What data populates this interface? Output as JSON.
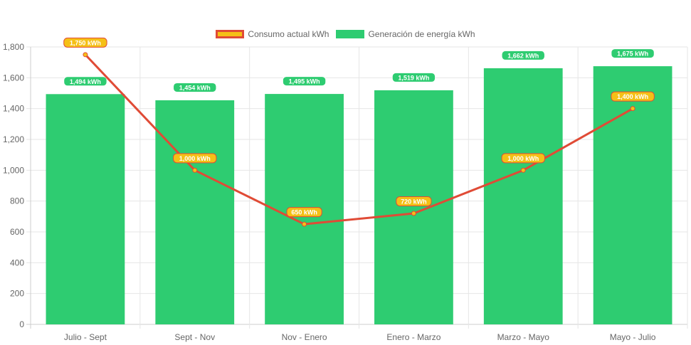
{
  "chart_data": {
    "type": "bar",
    "categories": [
      "Julio - Sept",
      "Sept - Nov",
      "Nov - Enero",
      "Enero - Marzo",
      "Marzo - Mayo",
      "Mayo - Julio"
    ],
    "series": [
      {
        "name": "Consumo actual kWh",
        "type": "line",
        "values": [
          1750,
          1000,
          650,
          720,
          1000,
          1400
        ],
        "labels": [
          "1,750 kWh",
          "1,000 kWh",
          "650 kWh",
          "720 kWh",
          "1,000 kWh",
          "1,400 kWh"
        ],
        "color": "#e04b36",
        "fill": "#f5c016"
      },
      {
        "name": "Generación de energía kWh",
        "type": "bar",
        "values": [
          1494,
          1454,
          1495,
          1519,
          1662,
          1675
        ],
        "labels": [
          "1,494 kWh",
          "1,454 kWh",
          "1,495 kWh",
          "1,519 kWh",
          "1,662 kWh",
          "1,675 kWh"
        ],
        "color": "#2ecc71"
      }
    ],
    "ylim": [
      0,
      1800
    ],
    "yticks": [
      "0",
      "200",
      "400",
      "600",
      "800",
      "1,000",
      "1,200",
      "1,400",
      "1,600",
      "1,800"
    ],
    "ytick_values": [
      0,
      200,
      400,
      600,
      800,
      1000,
      1200,
      1400,
      1600,
      1800
    ],
    "grid": true,
    "legend_position": "top"
  }
}
